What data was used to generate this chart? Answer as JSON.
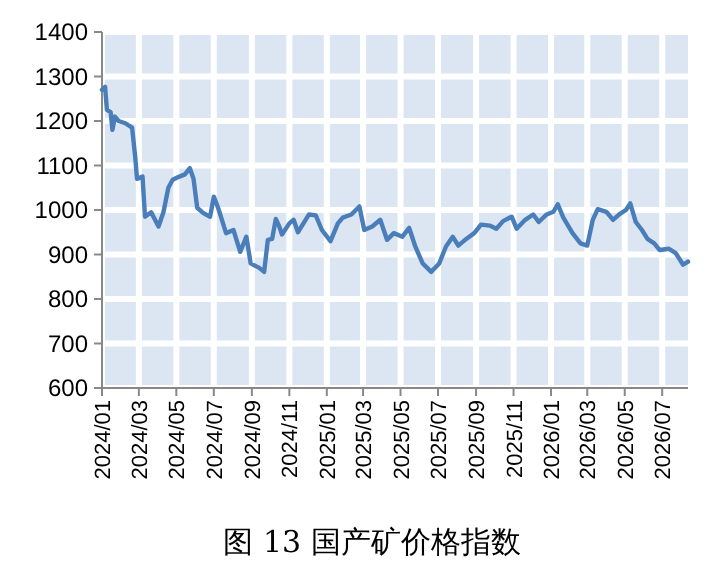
{
  "chart_data": {
    "type": "line",
    "title": "图 13 国产矿价格指数",
    "x": [
      "2024-01-01",
      "2024-01-06",
      "2024-01-09",
      "2024-01-15",
      "2024-01-18",
      "2024-01-22",
      "2024-01-28",
      "2024-02-08",
      "2024-02-19",
      "2024-02-24",
      "2024-02-27",
      "2024-03-07",
      "2024-03-11",
      "2024-03-21",
      "2024-04-02",
      "2024-04-10",
      "2024-04-18",
      "2024-04-25",
      "2024-05-06",
      "2024-05-15",
      "2024-05-23",
      "2024-05-29",
      "2024-06-04",
      "2024-06-14",
      "2024-06-25",
      "2024-07-01",
      "2024-07-08",
      "2024-07-21",
      "2024-08-02",
      "2024-08-13",
      "2024-08-23",
      "2024-08-30",
      "2024-09-13",
      "2024-09-21",
      "2024-09-27",
      "2024-10-04",
      "2024-10-10",
      "2024-10-15",
      "2024-10-20",
      "2024-11-01",
      "2024-11-08",
      "2024-11-15",
      "2024-12-03",
      "2024-12-14",
      "2024-12-24",
      "2025-01-07",
      "2025-01-19",
      "2025-01-27",
      "2025-02-10",
      "2025-02-23",
      "2025-03-03",
      "2025-03-16",
      "2025-03-29",
      "2025-04-09",
      "2025-04-20",
      "2025-05-04",
      "2025-05-15",
      "2025-05-25",
      "2025-06-06",
      "2025-06-20",
      "2025-07-03",
      "2025-07-14",
      "2025-07-25",
      "2025-08-03",
      "2025-08-16",
      "2025-08-29",
      "2025-09-09",
      "2025-09-23",
      "2025-10-04",
      "2025-10-15",
      "2025-10-29",
      "2025-11-06",
      "2025-11-20",
      "2025-12-03",
      "2025-12-12",
      "2025-12-25",
      "2026-01-05",
      "2026-01-12",
      "2026-01-21",
      "2026-02-05",
      "2026-02-18",
      "2026-03-01",
      "2026-03-10",
      "2026-03-18",
      "2026-04-01",
      "2026-04-12",
      "2026-04-22",
      "2026-05-03",
      "2026-05-10",
      "2026-05-19",
      "2026-05-29",
      "2026-06-07",
      "2026-06-18",
      "2026-06-27",
      "2026-07-12",
      "2026-07-23",
      "2026-08-04",
      "2026-08-12"
    ],
    "series": [
      {
        "color": "#4a7ebb",
        "values": [
          1270,
          1277,
          1225,
          1220,
          1180,
          1210,
          1200,
          1195,
          1185,
          1120,
          1070,
          1075,
          985,
          995,
          963,
          995,
          1050,
          1068,
          1075,
          1080,
          1094,
          1070,
          1005,
          993,
          985,
          1030,
          1005,
          948,
          955,
          906,
          940,
          880,
          870,
          861,
          933,
          935,
          980,
          965,
          945,
          970,
          978,
          950,
          990,
          988,
          955,
          930,
          970,
          983,
          990,
          1008,
          955,
          963,
          978,
          933,
          948,
          940,
          960,
          918,
          880,
          861,
          880,
          918,
          940,
          920,
          935,
          948,
          967,
          965,
          958,
          975,
          985,
          958,
          978,
          990,
          973,
          990,
          996,
          1013,
          983,
          948,
          925,
          920,
          978,
          1002,
          996,
          978,
          990,
          1000,
          1015,
          973,
          955,
          935,
          925,
          910,
          913,
          903,
          877,
          884
        ]
      }
    ],
    "xlim": [
      "2024-01-01",
      "2026-08-12"
    ],
    "xticks": [
      {
        "value": "2024-01-01",
        "label": "2024/01"
      },
      {
        "value": "2024-03-01",
        "label": "2024/03"
      },
      {
        "value": "2024-05-01",
        "label": "2024/05"
      },
      {
        "value": "2024-07-01",
        "label": "2024/07"
      },
      {
        "value": "2024-09-01",
        "label": "2024/09"
      },
      {
        "value": "2024-11-01",
        "label": "2024/11"
      },
      {
        "value": "2025-01-01",
        "label": "2025/01"
      },
      {
        "value": "2025-03-01",
        "label": "2025/03"
      },
      {
        "value": "2025-05-01",
        "label": "2025/05"
      },
      {
        "value": "2025-07-01",
        "label": "2025/07"
      },
      {
        "value": "2025-09-01",
        "label": "2025/09"
      },
      {
        "value": "2025-11-01",
        "label": "2025/11"
      },
      {
        "value": "2026-01-01",
        "label": "2026/01"
      },
      {
        "value": "2026-03-01",
        "label": "2026/03"
      },
      {
        "value": "2026-05-01",
        "label": "2026/05"
      },
      {
        "value": "2026-07-01",
        "label": "2026/07"
      }
    ],
    "ylim": [
      600,
      1400
    ],
    "yticks": [
      600,
      700,
      800,
      900,
      1000,
      1100,
      1200,
      1300,
      1400
    ],
    "grid": true
  }
}
